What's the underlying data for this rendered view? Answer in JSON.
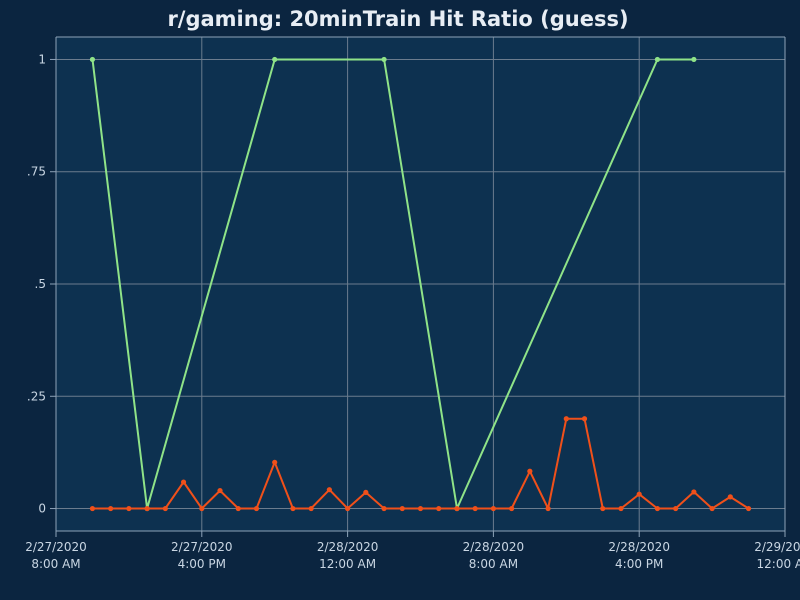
{
  "colors": {
    "page_background": "#0b2540",
    "plot_background": "#0d3150",
    "grid": "#6b7c8e",
    "axis": "#8ea3b8",
    "text": "#e8eef5",
    "tick_text": "#c9d6e3"
  },
  "chart_data": {
    "type": "line",
    "title": "r/gaming: 20minTrain Hit Ratio (guess)",
    "xlabel": "",
    "ylabel": "",
    "grid": true,
    "ylim": [
      -0.05,
      1.05
    ],
    "yticks": [
      {
        "value": 0,
        "label": "0"
      },
      {
        "value": 0.25,
        "label": ".25"
      },
      {
        "value": 0.5,
        "label": ".5"
      },
      {
        "value": 0.75,
        "label": ".75"
      },
      {
        "value": 1,
        "label": "1"
      }
    ],
    "xlim": [
      "2020-02-27T08:00",
      "2020-02-29T00:00"
    ],
    "xticks": [
      {
        "value": "2020-02-27T08:00",
        "date": "2/27/2020",
        "time": "8:00 AM"
      },
      {
        "value": "2020-02-27T16:00",
        "date": "2/27/2020",
        "time": "4:00 PM"
      },
      {
        "value": "2020-02-28T00:00",
        "date": "2/28/2020",
        "time": "12:00 AM"
      },
      {
        "value": "2020-02-28T08:00",
        "date": "2/28/2020",
        "time": "8:00 AM"
      },
      {
        "value": "2020-02-28T16:00",
        "date": "2/28/2020",
        "time": "4:00 PM"
      },
      {
        "value": "2020-02-29T00:00",
        "date": "2/29/2020",
        "time": "12:00 AM"
      }
    ],
    "series": [
      {
        "color": "#8fe388",
        "points": [
          {
            "x": "2020-02-27T10:00",
            "y": 1
          },
          {
            "x": "2020-02-27T13:00",
            "y": 0
          },
          {
            "x": "2020-02-27T20:00",
            "y": 1
          },
          {
            "x": "2020-02-28T02:00",
            "y": 1
          },
          {
            "x": "2020-02-28T06:00",
            "y": 0
          },
          {
            "x": "2020-02-28T17:00",
            "y": 1
          },
          {
            "x": "2020-02-28T19:00",
            "y": 1
          }
        ]
      },
      {
        "color": "#f0501a",
        "points": [
          {
            "x": "2020-02-27T10:00",
            "y": 0
          },
          {
            "x": "2020-02-27T11:00",
            "y": 0
          },
          {
            "x": "2020-02-27T12:00",
            "y": 0
          },
          {
            "x": "2020-02-27T13:00",
            "y": 0
          },
          {
            "x": "2020-02-27T14:00",
            "y": 0
          },
          {
            "x": "2020-02-27T15:00",
            "y": 0.059
          },
          {
            "x": "2020-02-27T16:00",
            "y": 0
          },
          {
            "x": "2020-02-27T17:00",
            "y": 0.04
          },
          {
            "x": "2020-02-27T18:00",
            "y": 0
          },
          {
            "x": "2020-02-27T19:00",
            "y": 0
          },
          {
            "x": "2020-02-27T20:00",
            "y": 0.103
          },
          {
            "x": "2020-02-27T21:00",
            "y": 0
          },
          {
            "x": "2020-02-27T22:00",
            "y": 0
          },
          {
            "x": "2020-02-27T23:00",
            "y": 0.042
          },
          {
            "x": "2020-02-28T00:00",
            "y": 0
          },
          {
            "x": "2020-02-28T01:00",
            "y": 0.036
          },
          {
            "x": "2020-02-28T02:00",
            "y": 0
          },
          {
            "x": "2020-02-28T03:00",
            "y": 0
          },
          {
            "x": "2020-02-28T04:00",
            "y": 0
          },
          {
            "x": "2020-02-28T05:00",
            "y": 0
          },
          {
            "x": "2020-02-28T06:00",
            "y": 0
          },
          {
            "x": "2020-02-28T07:00",
            "y": 0
          },
          {
            "x": "2020-02-28T08:00",
            "y": 0
          },
          {
            "x": "2020-02-28T09:00",
            "y": 0
          },
          {
            "x": "2020-02-28T10:00",
            "y": 0.083
          },
          {
            "x": "2020-02-28T11:00",
            "y": 0
          },
          {
            "x": "2020-02-28T12:00",
            "y": 0.2
          },
          {
            "x": "2020-02-28T13:00",
            "y": 0.2
          },
          {
            "x": "2020-02-28T14:00",
            "y": 0
          },
          {
            "x": "2020-02-28T15:00",
            "y": 0
          },
          {
            "x": "2020-02-28T16:00",
            "y": 0.032
          },
          {
            "x": "2020-02-28T17:00",
            "y": 0
          },
          {
            "x": "2020-02-28T18:00",
            "y": 0
          },
          {
            "x": "2020-02-28T19:00",
            "y": 0.037
          },
          {
            "x": "2020-02-28T20:00",
            "y": 0
          },
          {
            "x": "2020-02-28T21:00",
            "y": 0.026
          },
          {
            "x": "2020-02-28T22:00",
            "y": 0
          }
        ]
      }
    ]
  }
}
